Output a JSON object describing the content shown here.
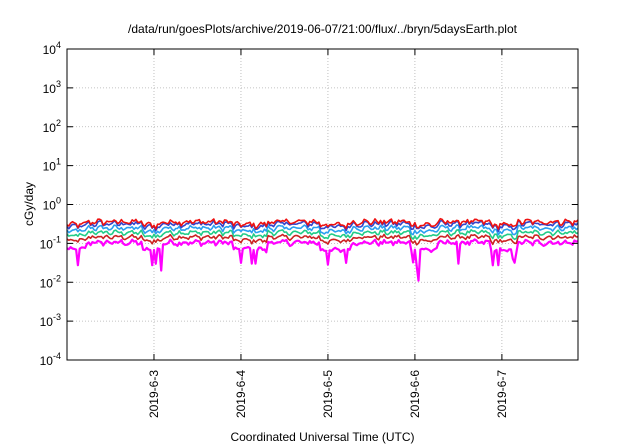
{
  "chart_data": {
    "type": "line",
    "title": "/data/run/goesPlots/archive/2019-06-07/21:00/flux/../bryn/5daysEarth.plot",
    "xlabel": "Coordinated Universal Time (UTC)",
    "ylabel": "cGy/day",
    "yscale": "log",
    "ylim": [
      0.0001,
      10000
    ],
    "y_ticks": [
      {
        "base": "10",
        "exp": "-4"
      },
      {
        "base": "10",
        "exp": "-3"
      },
      {
        "base": "10",
        "exp": "-2"
      },
      {
        "base": "10",
        "exp": "-1"
      },
      {
        "base": "10",
        "exp": "0"
      },
      {
        "base": "10",
        "exp": "1"
      },
      {
        "base": "10",
        "exp": "2"
      },
      {
        "base": "10",
        "exp": "3"
      },
      {
        "base": "10",
        "exp": "4"
      }
    ],
    "xlim": [
      "2019-06-02 00:00",
      "2019-06-07 21:00"
    ],
    "x_ticks": [
      "2019-6-3",
      "2019-6-4",
      "2019-6-5",
      "2019-6-6",
      "2019-6-7"
    ],
    "grid": true,
    "legend": "none",
    "series": [
      {
        "color": "#ff00ff",
        "base": 0.105,
        "amp": 0.022,
        "dip_scale": 1.0
      },
      {
        "color": "#cc2222",
        "base": 0.145,
        "amp": 0.025,
        "dip_scale": 0.55
      },
      {
        "color": "#22cc88",
        "base": 0.19,
        "amp": 0.035,
        "dip_scale": 0.5
      },
      {
        "color": "#2a9ff0",
        "base": 0.25,
        "amp": 0.05,
        "dip_scale": 0.5
      },
      {
        "color": "#3344cc",
        "base": 0.32,
        "amp": 0.07,
        "dip_scale": 0.45
      },
      {
        "color": "#ee1111",
        "base": 0.36,
        "amp": 0.08,
        "dip_scale": 0.45
      }
    ],
    "drops": [
      {
        "from": "2019-06-02 00:00",
        "to": "2019-06-02 05:00",
        "factor": 0.6
      },
      {
        "from": "2019-06-02 21:00",
        "to": "2019-06-03 02:00",
        "factor": 0.55
      },
      {
        "from": "2019-06-03 22:00",
        "to": "2019-06-04 07:00",
        "factor": 0.6
      },
      {
        "from": "2019-06-04 22:00",
        "to": "2019-06-05 06:00",
        "factor": 0.55
      },
      {
        "from": "2019-06-05 23:00",
        "to": "2019-06-06 06:00",
        "factor": 0.55
      },
      {
        "from": "2019-06-06 21:00",
        "to": "2019-06-07 04:00",
        "factor": 0.55
      }
    ],
    "spikes": [
      {
        "time": "2019-06-02 03:00",
        "value": 0.05
      },
      {
        "time": "2019-06-03 02:00",
        "value": 0.02
      },
      {
        "time": "2019-06-06 01:00",
        "value": 0.02
      },
      {
        "time": "2019-06-06 12:00",
        "value": 0.03
      },
      {
        "time": "2019-06-06 23:00",
        "value": 0.05
      },
      {
        "time": "2019-06-07 03:00",
        "value": 0.04
      }
    ]
  }
}
